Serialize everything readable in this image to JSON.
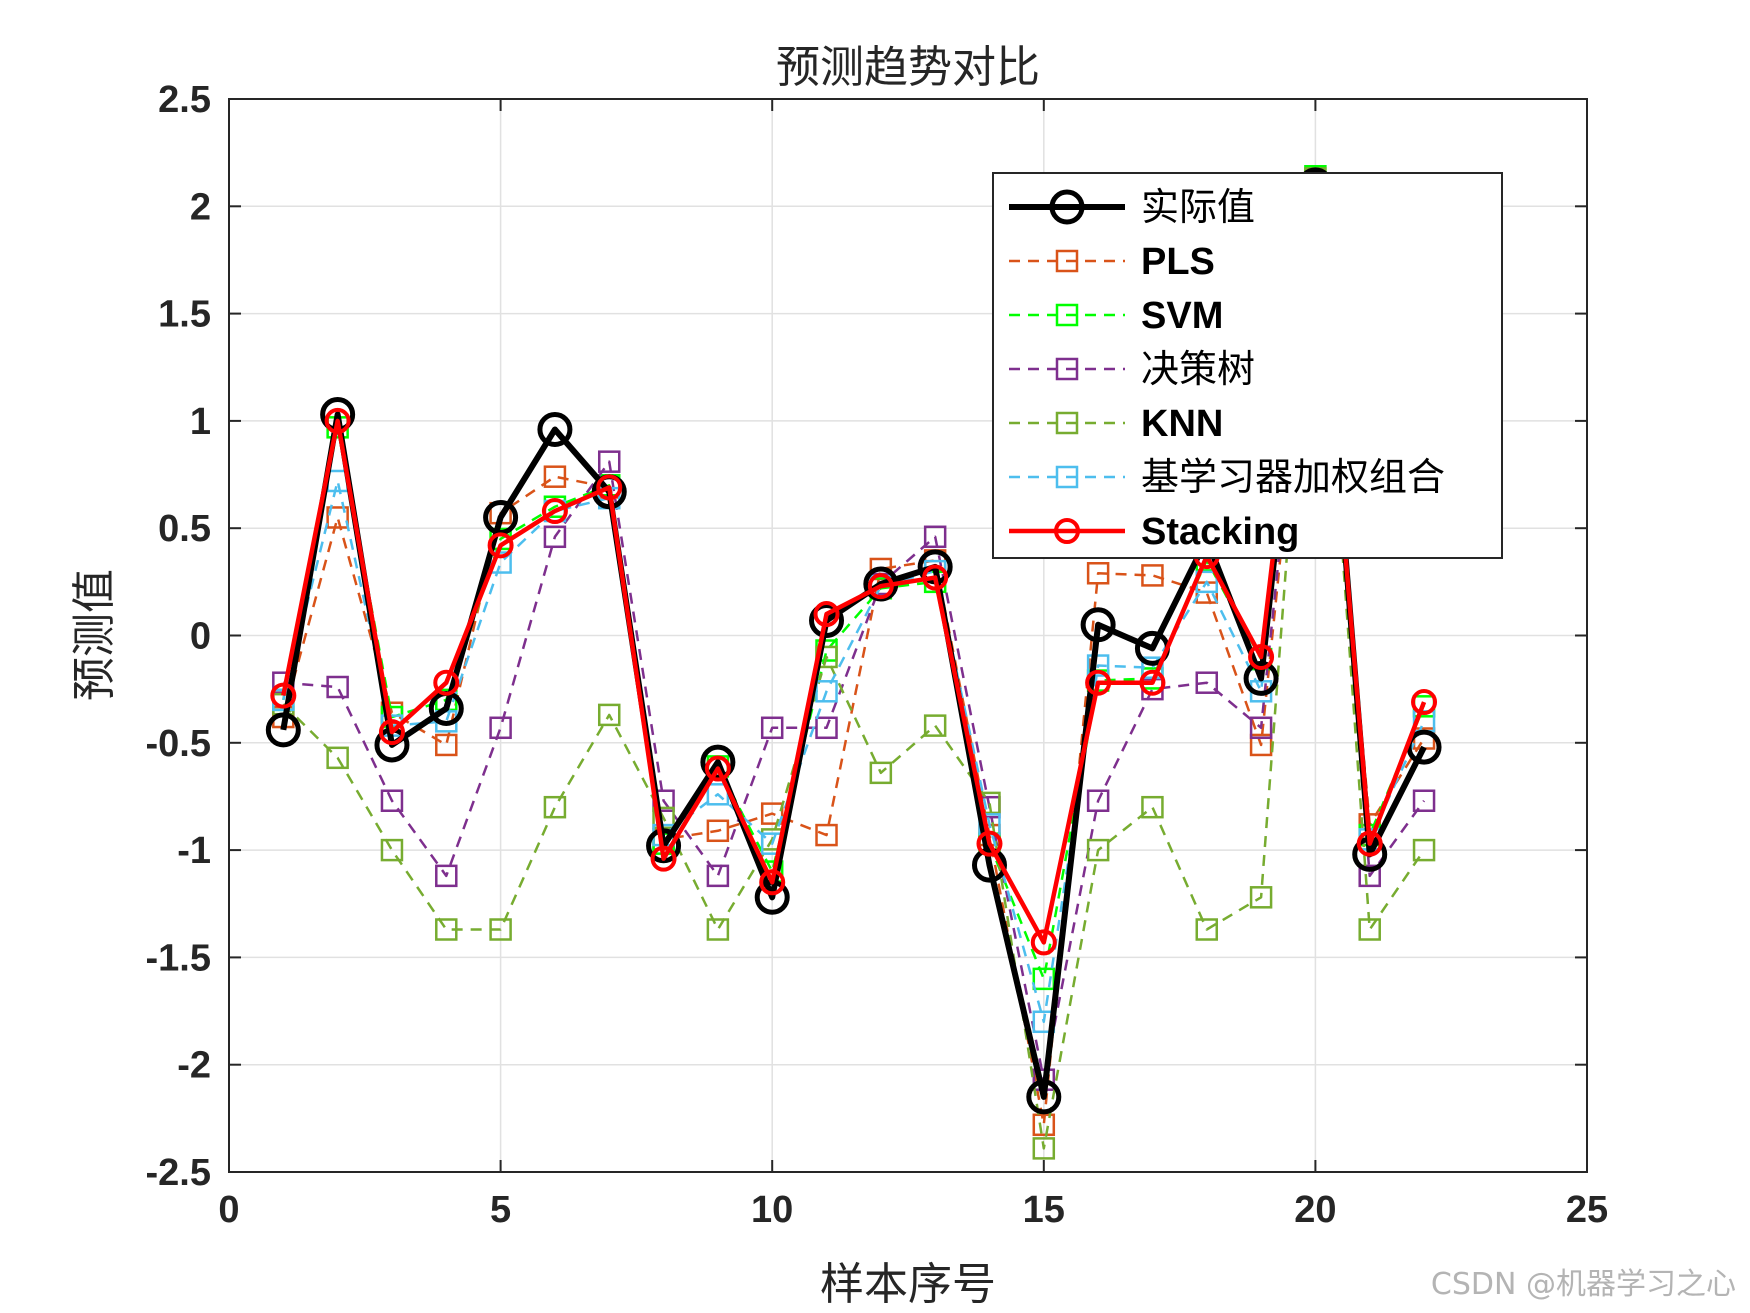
{
  "watermark": "CSDN @机器学习之心",
  "chart_data": {
    "type": "line",
    "title": "预测趋势对比",
    "xlabel": "样本序号",
    "ylabel": "预测值",
    "xlim": [
      0,
      25
    ],
    "ylim": [
      -2.5,
      2.5
    ],
    "xticks": [
      "0",
      "5",
      "10",
      "15",
      "20",
      "25"
    ],
    "yticks": [
      "-2.5",
      "-2",
      "-1.5",
      "-1",
      "-0.5",
      "0",
      "0.5",
      "1",
      "1.5",
      "2",
      "2.5"
    ],
    "grid": true,
    "legend_position": "top-right",
    "x": [
      1,
      2,
      3,
      4,
      5,
      6,
      7,
      8,
      9,
      10,
      11,
      12,
      13,
      14,
      15,
      16,
      17,
      18,
      19,
      20,
      21,
      22
    ],
    "series": [
      {
        "name": "实际值",
        "color": "#000000",
        "style": "solid",
        "marker": "circle",
        "values": [
          -0.44,
          1.03,
          -0.51,
          -0.34,
          0.55,
          0.96,
          0.67,
          -0.98,
          -0.59,
          -1.22,
          0.07,
          0.24,
          0.32,
          -1.07,
          -2.15,
          0.05,
          -0.06,
          0.45,
          -0.2,
          2.1,
          -1.02,
          -0.52
        ]
      },
      {
        "name": "PLS",
        "color": "#D95319",
        "style": "dashed",
        "marker": "square",
        "values": [
          -0.38,
          0.55,
          -0.36,
          -0.51,
          0.57,
          0.74,
          0.69,
          -0.95,
          -0.91,
          -0.83,
          -0.93,
          0.31,
          0.35,
          -0.93,
          -2.28,
          0.29,
          0.28,
          0.2,
          -0.51,
          1.95,
          -0.88,
          -0.48
        ]
      },
      {
        "name": "SVM",
        "color": "#00FF00",
        "style": "dashed",
        "marker": "square",
        "values": [
          -0.3,
          0.97,
          -0.38,
          -0.3,
          0.45,
          0.6,
          0.7,
          -0.97,
          -0.61,
          -1.1,
          -0.07,
          0.22,
          0.25,
          -0.97,
          -1.6,
          -0.21,
          -0.2,
          0.35,
          -0.11,
          2.14,
          -0.93,
          -0.33
        ]
      },
      {
        "name": "决策树",
        "color": "#7E2F8E",
        "style": "dashed",
        "marker": "square",
        "values": [
          -0.22,
          -0.24,
          -0.77,
          -1.12,
          -0.43,
          0.46,
          0.81,
          -0.77,
          -1.12,
          -0.43,
          -0.43,
          0.24,
          0.46,
          -0.8,
          -2.07,
          -0.77,
          -0.25,
          -0.22,
          -0.43,
          2.0,
          -1.12,
          -0.77
        ]
      },
      {
        "name": "KNN",
        "color": "#77AC30",
        "style": "dashed",
        "marker": "square",
        "values": [
          -0.32,
          -0.57,
          -1.0,
          -1.37,
          -1.37,
          -0.8,
          -0.37,
          -0.85,
          -1.37,
          -0.95,
          -0.1,
          -0.64,
          -0.42,
          -0.78,
          -2.39,
          -1.0,
          -0.8,
          -1.37,
          -1.22,
          2.13,
          -1.37,
          -1.0
        ]
      },
      {
        "name": "基学习器加权组合",
        "color": "#4DBEEE",
        "style": "dashed",
        "marker": "square",
        "values": [
          -0.3,
          0.72,
          -0.42,
          -0.4,
          0.34,
          0.58,
          0.64,
          -0.93,
          -0.74,
          -0.97,
          -0.26,
          0.23,
          0.3,
          -0.88,
          -1.8,
          -0.14,
          -0.15,
          0.25,
          -0.26,
          2.05,
          -0.95,
          -0.4
        ]
      },
      {
        "name": "Stacking",
        "color": "#FF0000",
        "style": "solid",
        "marker": "circle",
        "values": [
          -0.28,
          1.0,
          -0.45,
          -0.22,
          0.42,
          0.58,
          0.69,
          -1.04,
          -0.62,
          -1.15,
          0.1,
          0.23,
          0.27,
          -0.97,
          -1.43,
          -0.22,
          -0.22,
          0.37,
          -0.1,
          2.05,
          -0.97,
          -0.31
        ]
      }
    ]
  }
}
